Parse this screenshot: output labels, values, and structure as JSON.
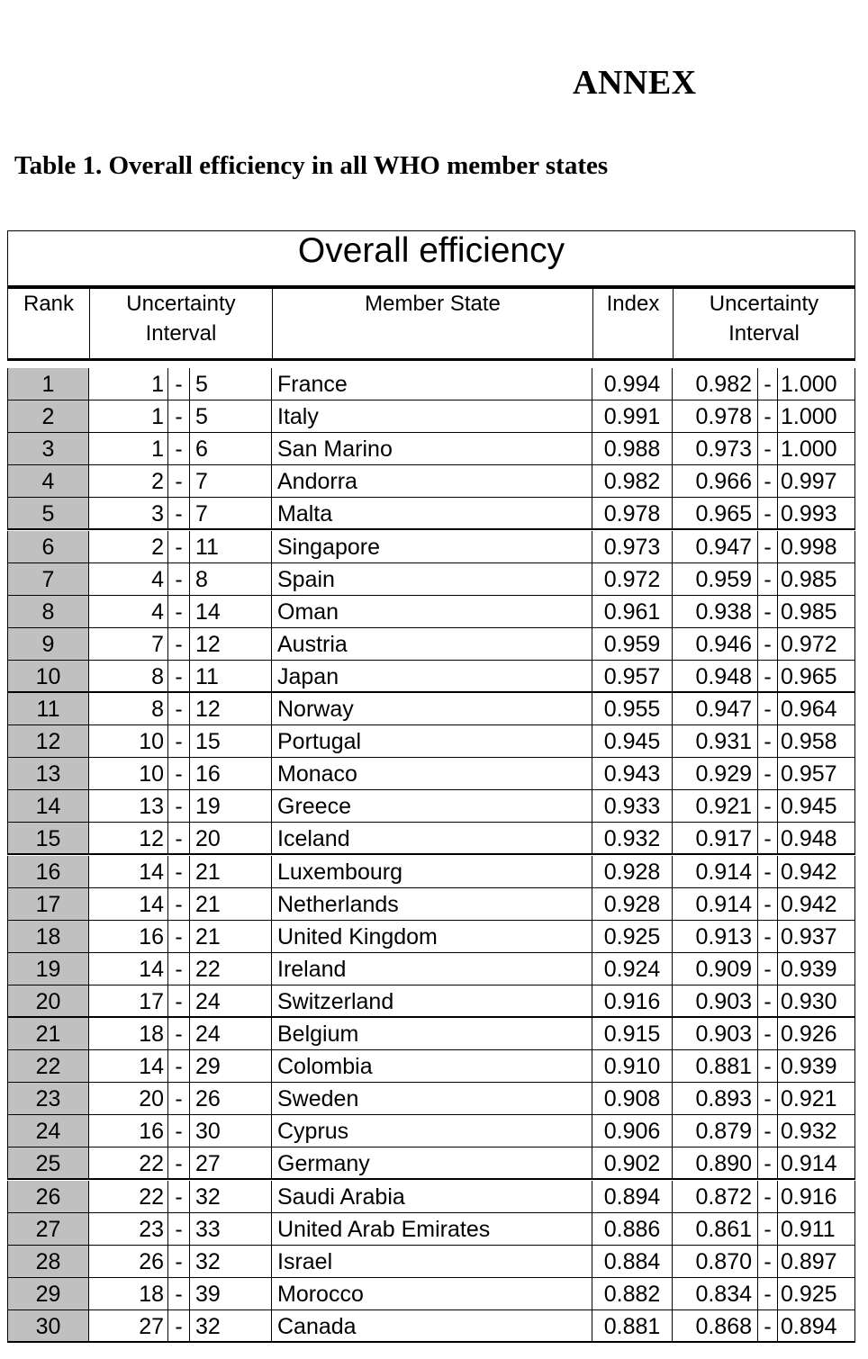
{
  "heading": "ANNEX",
  "caption": "Table 1. Overall efficiency in all WHO member states",
  "table": {
    "title": "Overall efficiency",
    "headers": {
      "rank": "Rank",
      "rank_interval": "Uncertainty\nInterval",
      "member_state": "Member State",
      "index": "Index",
      "index_interval": "Uncertainty\nInterval"
    },
    "rows": [
      {
        "rank": "1",
        "lo": "1",
        "hi": "5",
        "state": "France",
        "index": "0.994",
        "ilo": "0.982",
        "ihi": "1.000"
      },
      {
        "rank": "2",
        "lo": "1",
        "hi": "5",
        "state": "Italy",
        "index": "0.991",
        "ilo": "0.978",
        "ihi": "1.000"
      },
      {
        "rank": "3",
        "lo": "1",
        "hi": "6",
        "state": "San Marino",
        "index": "0.988",
        "ilo": "0.973",
        "ihi": "1.000"
      },
      {
        "rank": "4",
        "lo": "2",
        "hi": "7",
        "state": "Andorra",
        "index": "0.982",
        "ilo": "0.966",
        "ihi": "0.997"
      },
      {
        "rank": "5",
        "lo": "3",
        "hi": "7",
        "state": "Malta",
        "index": "0.978",
        "ilo": "0.965",
        "ihi": "0.993"
      },
      {
        "rank": "6",
        "lo": "2",
        "hi": "11",
        "state": "Singapore",
        "index": "0.973",
        "ilo": "0.947",
        "ihi": "0.998"
      },
      {
        "rank": "7",
        "lo": "4",
        "hi": "8",
        "state": "Spain",
        "index": "0.972",
        "ilo": "0.959",
        "ihi": "0.985"
      },
      {
        "rank": "8",
        "lo": "4",
        "hi": "14",
        "state": "Oman",
        "index": "0.961",
        "ilo": "0.938",
        "ihi": "0.985"
      },
      {
        "rank": "9",
        "lo": "7",
        "hi": "12",
        "state": "Austria",
        "index": "0.959",
        "ilo": "0.946",
        "ihi": "0.972"
      },
      {
        "rank": "10",
        "lo": "8",
        "hi": "11",
        "state": "Japan",
        "index": "0.957",
        "ilo": "0.948",
        "ihi": "0.965"
      },
      {
        "rank": "11",
        "lo": "8",
        "hi": "12",
        "state": "Norway",
        "index": "0.955",
        "ilo": "0.947",
        "ihi": "0.964"
      },
      {
        "rank": "12",
        "lo": "10",
        "hi": "15",
        "state": "Portugal",
        "index": "0.945",
        "ilo": "0.931",
        "ihi": "0.958"
      },
      {
        "rank": "13",
        "lo": "10",
        "hi": "16",
        "state": "Monaco",
        "index": "0.943",
        "ilo": "0.929",
        "ihi": "0.957"
      },
      {
        "rank": "14",
        "lo": "13",
        "hi": "19",
        "state": "Greece",
        "index": "0.933",
        "ilo": "0.921",
        "ihi": "0.945"
      },
      {
        "rank": "15",
        "lo": "12",
        "hi": "20",
        "state": "Iceland",
        "index": "0.932",
        "ilo": "0.917",
        "ihi": "0.948"
      },
      {
        "rank": "16",
        "lo": "14",
        "hi": "21",
        "state": "Luxembourg",
        "index": "0.928",
        "ilo": "0.914",
        "ihi": "0.942"
      },
      {
        "rank": "17",
        "lo": "14",
        "hi": "21",
        "state": "Netherlands",
        "index": "0.928",
        "ilo": "0.914",
        "ihi": "0.942"
      },
      {
        "rank": "18",
        "lo": "16",
        "hi": "21",
        "state": "United Kingdom",
        "index": "0.925",
        "ilo": "0.913",
        "ihi": "0.937"
      },
      {
        "rank": "19",
        "lo": "14",
        "hi": "22",
        "state": "Ireland",
        "index": "0.924",
        "ilo": "0.909",
        "ihi": "0.939"
      },
      {
        "rank": "20",
        "lo": "17",
        "hi": "24",
        "state": "Switzerland",
        "index": "0.916",
        "ilo": "0.903",
        "ihi": "0.930"
      },
      {
        "rank": "21",
        "lo": "18",
        "hi": "24",
        "state": "Belgium",
        "index": "0.915",
        "ilo": "0.903",
        "ihi": "0.926"
      },
      {
        "rank": "22",
        "lo": "14",
        "hi": "29",
        "state": "Colombia",
        "index": "0.910",
        "ilo": "0.881",
        "ihi": "0.939"
      },
      {
        "rank": "23",
        "lo": "20",
        "hi": "26",
        "state": "Sweden",
        "index": "0.908",
        "ilo": "0.893",
        "ihi": "0.921"
      },
      {
        "rank": "24",
        "lo": "16",
        "hi": "30",
        "state": "Cyprus",
        "index": "0.906",
        "ilo": "0.879",
        "ihi": "0.932"
      },
      {
        "rank": "25",
        "lo": "22",
        "hi": "27",
        "state": "Germany",
        "index": "0.902",
        "ilo": "0.890",
        "ihi": "0.914"
      },
      {
        "rank": "26",
        "lo": "22",
        "hi": "32",
        "state": "Saudi Arabia",
        "index": "0.894",
        "ilo": "0.872",
        "ihi": "0.916"
      },
      {
        "rank": "27",
        "lo": "23",
        "hi": "33",
        "state": "United Arab Emirates",
        "index": "0.886",
        "ilo": "0.861",
        "ihi": "0.911"
      },
      {
        "rank": "28",
        "lo": "26",
        "hi": "32",
        "state": "Israel",
        "index": "0.884",
        "ilo": "0.870",
        "ihi": "0.897"
      },
      {
        "rank": "29",
        "lo": "18",
        "hi": "39",
        "state": "Morocco",
        "index": "0.882",
        "ilo": "0.834",
        "ihi": "0.925"
      },
      {
        "rank": "30",
        "lo": "27",
        "hi": "32",
        "state": "Canada",
        "index": "0.881",
        "ilo": "0.868",
        "ihi": "0.894"
      }
    ]
  }
}
